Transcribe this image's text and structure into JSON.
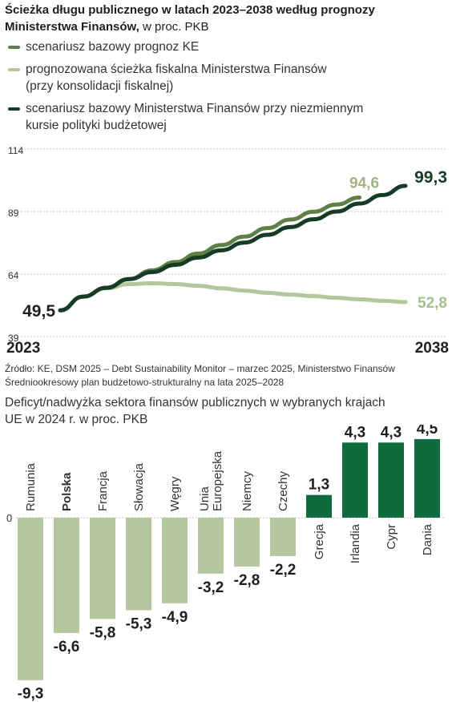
{
  "chart_data": [
    {
      "type": "line",
      "title": "Ścieżka długu publicznego w latach 2023–2038 według prognozy Ministerstwa Finansów,",
      "subtitle": "w proc. PKB",
      "x_start_label": "2023",
      "x_end_label": "2038",
      "xlim": [
        2023,
        2038
      ],
      "ylim": [
        39,
        114
      ],
      "yticks": [
        "114",
        "89",
        "64",
        "39"
      ],
      "grid": true,
      "legend_placement": "top",
      "series": [
        {
          "name": "scenariusz bazowy prognoz KE",
          "name_line2": "",
          "color": "#5e7f45",
          "x": [
            2023,
            2024,
            2025,
            2026,
            2027,
            2028,
            2029,
            2030,
            2031,
            2032,
            2033,
            2034,
            2035,
            2036
          ],
          "y": [
            49.5,
            55.0,
            58.5,
            62.0,
            65.5,
            68.8,
            72.2,
            75.6,
            79.0,
            82.4,
            85.8,
            88.9,
            91.8,
            94.6
          ],
          "end_label": "94,6"
        },
        {
          "name": "prognozowana ścieżka fiskalna Ministerstwa Finansów",
          "name_line2": "(przy konsolidacji fiskalnej)",
          "color": "#b2c79b",
          "x": [
            2023,
            2024,
            2025,
            2026,
            2027,
            2028,
            2029,
            2030,
            2031,
            2032,
            2033,
            2034,
            2035,
            2036,
            2037,
            2038
          ],
          "y": [
            49.5,
            55.0,
            58.3,
            60.0,
            60.3,
            60.0,
            59.3,
            58.3,
            57.4,
            56.5,
            55.8,
            55.2,
            54.5,
            53.9,
            53.3,
            52.8
          ],
          "end_label": "52,8"
        },
        {
          "name": "scenariusz bazowy Ministerstwa Finansów przy niezmiennym",
          "name_line2": "kursie polityki budżetowej",
          "color": "#163b26",
          "x": [
            2023,
            2024,
            2025,
            2026,
            2027,
            2028,
            2029,
            2030,
            2031,
            2032,
            2033,
            2034,
            2035,
            2036,
            2037,
            2038
          ],
          "y": [
            49.5,
            55.0,
            58.5,
            62.0,
            64.8,
            67.7,
            70.6,
            73.5,
            76.6,
            79.7,
            82.8,
            85.9,
            89.0,
            92.2,
            95.6,
            99.3
          ],
          "end_label": "99,3"
        }
      ],
      "start_label": "49,5"
    },
    {
      "type": "bar",
      "title": "Deficyt/nadwyżka sektora finansów publicznych w wybranych krajach",
      "title_line2": "UE w 2024 r. w proc. PKB",
      "zero_label": "0",
      "ylim": [
        -9.3,
        4.5
      ],
      "negative_color": "#b5c79f",
      "positive_color": "#0e6b3e",
      "categories": [
        {
          "name": "Rumunia",
          "name_line2": "",
          "value": -9.3,
          "label": "-9,3",
          "bold": false
        },
        {
          "name": "Polska",
          "name_line2": "",
          "value": -6.6,
          "label": "-6,6",
          "bold": true
        },
        {
          "name": "Francja",
          "name_line2": "",
          "value": -5.8,
          "label": "-5,8",
          "bold": false
        },
        {
          "name": "Słowacja",
          "name_line2": "",
          "value": -5.3,
          "label": "-5,3",
          "bold": false
        },
        {
          "name": "Węgry",
          "name_line2": "",
          "value": -4.9,
          "label": "-4,9",
          "bold": false
        },
        {
          "name": "Unia",
          "name_line2": "Europejska",
          "value": -3.2,
          "label": "-3,2",
          "bold": false
        },
        {
          "name": "Niemcy",
          "name_line2": "",
          "value": -2.8,
          "label": "-2,8",
          "bold": false
        },
        {
          "name": "Czechy",
          "name_line2": "",
          "value": -2.2,
          "label": "-2,2",
          "bold": false
        },
        {
          "name": "Grecja",
          "name_line2": "",
          "value": 1.3,
          "label": "1,3",
          "bold": false
        },
        {
          "name": "Irlandia",
          "name_line2": "",
          "value": 4.3,
          "label": "4,3",
          "bold": false
        },
        {
          "name": "Cypr",
          "name_line2": "",
          "value": 4.3,
          "label": "4,3",
          "bold": false
        },
        {
          "name": "Dania",
          "name_line2": "",
          "value": 4.5,
          "label": "4,5",
          "bold": false
        }
      ]
    }
  ],
  "source": {
    "line1": "Źródło: KE, DSM 2025 – Debt Sustainability Monitor – marzec 2025, Ministerstwo Finansów",
    "line2": "Średniookresowy plan budżetowo-strukturalny na lata 2025–2028"
  }
}
